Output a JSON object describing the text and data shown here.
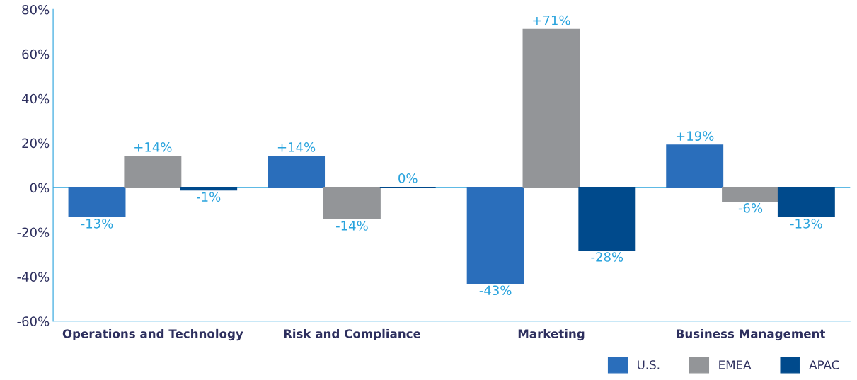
{
  "chart_data": {
    "type": "bar",
    "categories": [
      "Operations and Technology",
      "Risk and Compliance",
      "Marketing",
      "Business Management"
    ],
    "series": [
      {
        "name": "U.S.",
        "color": "#2a6ebb",
        "values": [
          -13,
          14,
          -43,
          19
        ],
        "value_labels": [
          "-13%",
          "+14%",
          "-43%",
          "+19%"
        ]
      },
      {
        "name": "EMEA",
        "color": "#939598",
        "values": [
          14,
          -14,
          71,
          -6
        ],
        "value_labels": [
          "+14%",
          "-14%",
          "+71%",
          "-6%"
        ]
      },
      {
        "name": "APAC",
        "color": "#004a8c",
        "values": [
          -1,
          0,
          -28,
          -13
        ],
        "value_labels": [
          "-1%",
          "0%",
          "-28%",
          "-13%"
        ]
      }
    ],
    "ylim": [
      -60,
      80
    ],
    "yticks": [
      {
        "value": -60,
        "label": "-60%"
      },
      {
        "value": -40,
        "label": "-40%"
      },
      {
        "value": -20,
        "label": "-20%"
      },
      {
        "value": 0,
        "label": "0%"
      },
      {
        "value": 20,
        "label": "20%"
      },
      {
        "value": 40,
        "label": "40%"
      },
      {
        "value": 60,
        "label": "60%"
      },
      {
        "value": 80,
        "label": "80%"
      }
    ],
    "ref_lines": [
      {
        "axis": "y",
        "value": 0,
        "color": "#29a3dd"
      }
    ],
    "grid": false,
    "legend": "bottom right"
  }
}
